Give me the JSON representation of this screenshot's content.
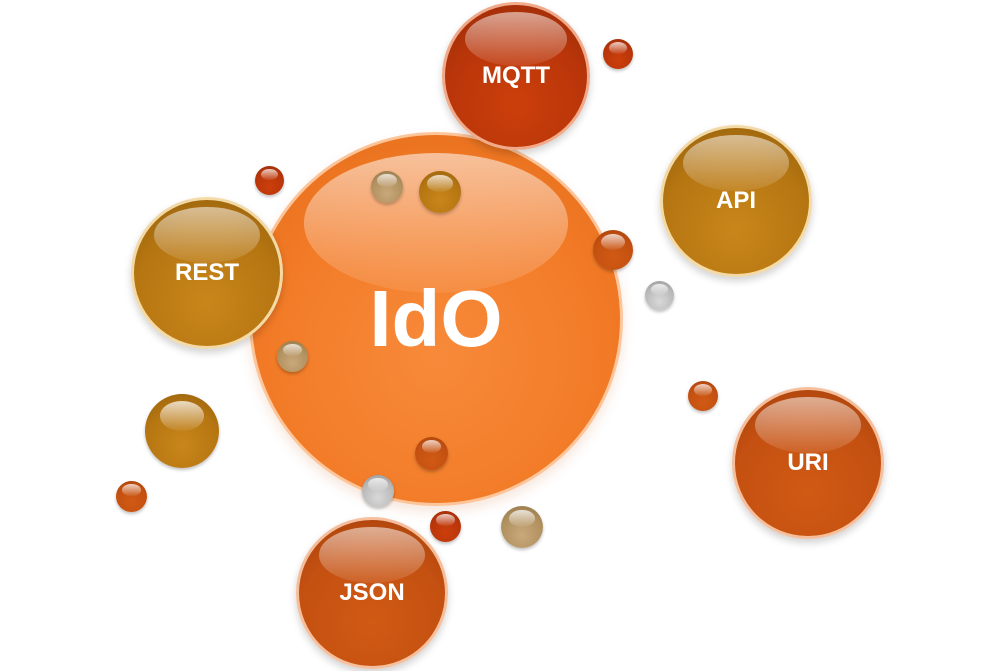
{
  "diagram": {
    "center": {
      "label": "IdO"
    },
    "satellites": [
      {
        "key": "mqtt",
        "label": "MQTT"
      },
      {
        "key": "api",
        "label": "API"
      },
      {
        "key": "rest",
        "label": "REST"
      },
      {
        "key": "uri",
        "label": "URI"
      },
      {
        "key": "json",
        "label": "JSON"
      }
    ]
  },
  "colors": {
    "center": "#f27a26",
    "mqtt": "#b8350a",
    "api": "#b57511",
    "rest": "#b57511",
    "uri": "#c45011",
    "json": "#c0410c",
    "accent_silver": "#c0c0c0",
    "accent_beige": "#b0905e",
    "text": "#ffffff"
  }
}
